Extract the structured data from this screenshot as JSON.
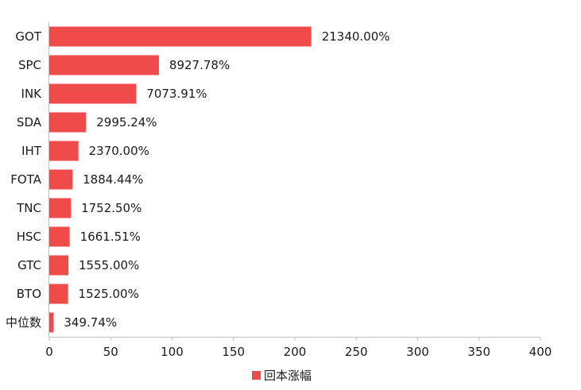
{
  "chart_data": {
    "type": "bar",
    "orientation": "horizontal",
    "title": "",
    "categories": [
      "GOT",
      "SPC",
      "INK",
      "SDA",
      "IHT",
      "FOTA",
      "TNC",
      "HSC",
      "GTC",
      "BTO",
      "中位数"
    ],
    "values": [
      213.4,
      89.2778,
      70.7391,
      29.9524,
      23.7,
      18.8444,
      17.525,
      16.6151,
      15.55,
      15.25,
      3.4974
    ],
    "value_labels": [
      "21340.00%",
      "8927.78%",
      "7073.91%",
      "2995.24%",
      "2370.00%",
      "1884.44%",
      "1752.50%",
      "1661.51%",
      "1555.00%",
      "1525.00%",
      "349.74%"
    ],
    "xlim": [
      0,
      400
    ],
    "xticks": [
      "0",
      "50",
      "100",
      "150",
      "200",
      "250",
      "300",
      "350",
      "400"
    ],
    "xlabel": "",
    "ylabel": "",
    "grid": false,
    "legend_position": "bottom",
    "series": [
      {
        "name": "回本涨幅",
        "color": "#EE4B4A"
      }
    ]
  }
}
